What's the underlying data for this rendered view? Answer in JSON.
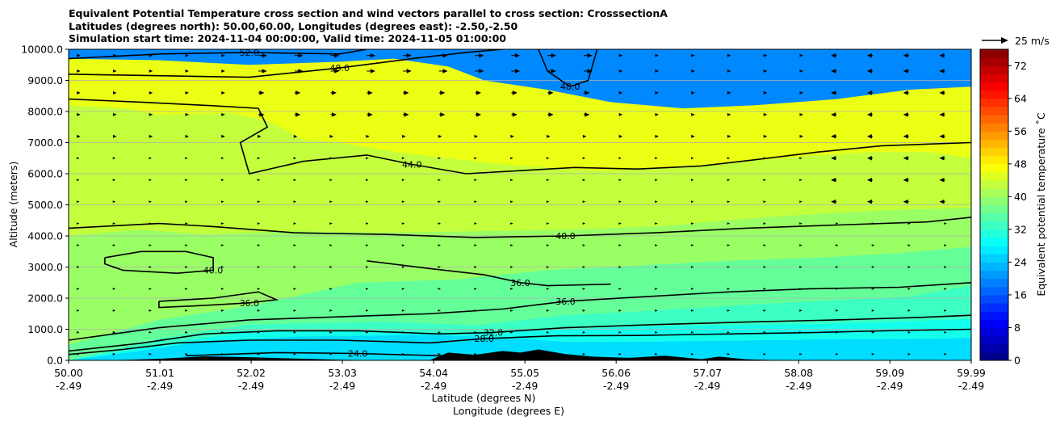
{
  "chart_data": {
    "type": "contourf",
    "title_lines": [
      "Equivalent Potential Temperature cross section and wind vectors parallel to cross section: CrosssectionA",
      "Latitudes (degrees north): 50.00,60.00, Longitudes (degrees east): -2.50,-2.50",
      "Simulation start time: 2024-11-04 00:00:00, Valid time: 2024-11-05 01:00:00"
    ],
    "ylabel": "Altitude (meters)",
    "xlabel_lat": "Latitude (degrees N)",
    "xlabel_lon": "Longitude (degrees E)",
    "ylim": [
      0,
      10000
    ],
    "xlim": [
      50.0,
      59.99
    ],
    "y_ticks": [
      {
        "value": 0,
        "label": "0.0"
      },
      {
        "value": 1000,
        "label": "1000.0"
      },
      {
        "value": 2000,
        "label": "2000.0"
      },
      {
        "value": 3000,
        "label": "3000.0"
      },
      {
        "value": 4000,
        "label": "4000.0"
      },
      {
        "value": 5000,
        "label": "5000.0"
      },
      {
        "value": 6000,
        "label": "6000.0"
      },
      {
        "value": 7000,
        "label": "7000.0"
      },
      {
        "value": 8000,
        "label": "8000.0"
      },
      {
        "value": 9000,
        "label": "9000.0"
      },
      {
        "value": 10000,
        "label": "10000.0"
      }
    ],
    "x_ticks": [
      {
        "lat": "50.00",
        "lon": "-2.49",
        "value": 50.0
      },
      {
        "lat": "51.01",
        "lon": "-2.49",
        "value": 51.01
      },
      {
        "lat": "52.02",
        "lon": "-2.49",
        "value": 52.02
      },
      {
        "lat": "53.03",
        "lon": "-2.49",
        "value": 53.03
      },
      {
        "lat": "54.04",
        "lon": "-2.49",
        "value": 54.04
      },
      {
        "lat": "55.05",
        "lon": "-2.49",
        "value": 55.05
      },
      {
        "lat": "56.06",
        "lon": "-2.49",
        "value": 56.06
      },
      {
        "lat": "57.07",
        "lon": "-2.49",
        "value": 57.07
      },
      {
        "lat": "58.08",
        "lon": "-2.49",
        "value": 58.08
      },
      {
        "lat": "59.09",
        "lon": "-2.49",
        "value": 59.09
      },
      {
        "lat": "59.99",
        "lon": "-2.49",
        "value": 59.99
      }
    ],
    "colorbar": {
      "label": "Equivalent potential temperature ˚C",
      "range": [
        0,
        76
      ],
      "tick_values": [
        0,
        8,
        16,
        24,
        32,
        40,
        48,
        56,
        64,
        72
      ],
      "tick_labels": [
        "0",
        "8",
        "16",
        "24",
        "32",
        "40",
        "48",
        "56",
        "64",
        "72"
      ]
    },
    "quiver_key": {
      "label": "25 m/s",
      "speed": 25
    },
    "fill_layers": [
      {
        "value": 26,
        "points": [
          [
            50.0,
            0
          ],
          [
            50.8,
            300
          ],
          [
            51.5,
            620
          ],
          [
            52.5,
            760
          ],
          [
            54,
            820
          ],
          [
            55,
            700
          ],
          [
            55.5,
            590
          ],
          [
            56.5,
            600
          ],
          [
            57.5,
            640
          ],
          [
            58.5,
            680
          ],
          [
            59.5,
            690
          ],
          [
            59.99,
            720
          ],
          [
            59.99,
            0
          ]
        ]
      },
      {
        "value": 30,
        "points": [
          [
            50.0,
            0
          ],
          [
            50.9,
            450
          ],
          [
            52,
            930
          ],
          [
            53.3,
            960
          ],
          [
            54.2,
            880
          ],
          [
            55.2,
            950
          ],
          [
            56.3,
            1080
          ],
          [
            57.3,
            1130
          ],
          [
            58.4,
            1180
          ],
          [
            59.3,
            1260
          ],
          [
            59.99,
            1330
          ],
          [
            59.99,
            0
          ]
        ]
      },
      {
        "value": 33,
        "points": [
          [
            50.0,
            0
          ],
          [
            51,
            700
          ],
          [
            52,
            1150
          ],
          [
            53.5,
            1250
          ],
          [
            54.5,
            1130
          ],
          [
            55.5,
            1450
          ],
          [
            56.6,
            1620
          ],
          [
            57.6,
            1800
          ],
          [
            58.5,
            1930
          ],
          [
            59.3,
            2050
          ],
          [
            59.99,
            2400
          ],
          [
            59.99,
            0
          ]
        ]
      },
      {
        "value": 36,
        "points": [
          [
            50.0,
            500
          ],
          [
            51,
            1300
          ],
          [
            52,
            1750
          ],
          [
            53.2,
            2500
          ],
          [
            54.3,
            2600
          ],
          [
            55.3,
            2900
          ],
          [
            56.3,
            3050
          ],
          [
            57.3,
            3200
          ],
          [
            58.3,
            3300
          ],
          [
            59.2,
            3450
          ],
          [
            59.99,
            3650
          ],
          [
            59.99,
            0
          ],
          [
            50.0,
            0
          ]
        ]
      },
      {
        "value": 40,
        "points": [
          [
            50.0,
            4000
          ],
          [
            50.8,
            4200
          ],
          [
            51.5,
            4050
          ],
          [
            52.5,
            4150
          ],
          [
            53.5,
            4100
          ],
          [
            54.5,
            4150
          ],
          [
            55.5,
            4200
          ],
          [
            56.5,
            4300
          ],
          [
            57.5,
            4550
          ],
          [
            58.5,
            4750
          ],
          [
            59.3,
            4850
          ],
          [
            59.99,
            4900
          ],
          [
            59.99,
            0
          ],
          [
            50.0,
            0
          ]
        ]
      },
      {
        "value": 43,
        "points": [
          [
            50.0,
            8200
          ],
          [
            50.6,
            8100
          ],
          [
            51,
            7900
          ],
          [
            51.8,
            7950
          ],
          [
            52.2,
            7700
          ],
          [
            52.6,
            7100
          ],
          [
            53,
            7000
          ],
          [
            53.6,
            6700
          ],
          [
            54.2,
            6500
          ],
          [
            54.8,
            6300
          ],
          [
            55.3,
            6200
          ],
          [
            55.9,
            6100
          ],
          [
            56.5,
            6150
          ],
          [
            57.1,
            6300
          ],
          [
            57.7,
            6450
          ],
          [
            58.3,
            6600
          ],
          [
            58.9,
            6700
          ],
          [
            59.5,
            6700
          ],
          [
            59.99,
            6500
          ],
          [
            59.99,
            0
          ],
          [
            50.0,
            0
          ]
        ]
      },
      {
        "value": 46,
        "points": [
          [
            50.0,
            9700
          ],
          [
            51,
            9650
          ],
          [
            52,
            9500
          ],
          [
            53,
            9600
          ],
          [
            53.6,
            9700
          ],
          [
            54.2,
            9450
          ],
          [
            54.6,
            9000
          ],
          [
            55.3,
            8700
          ],
          [
            56,
            8300
          ],
          [
            56.8,
            8100
          ],
          [
            57.6,
            8200
          ],
          [
            58.5,
            8400
          ],
          [
            59.3,
            8700
          ],
          [
            59.99,
            8800
          ],
          [
            59.99,
            0
          ],
          [
            50.0,
            0
          ]
        ]
      }
    ],
    "contours": [
      {
        "label": "24.0",
        "points": [
          [
            51.3,
            150
          ],
          [
            52.3,
            250
          ],
          [
            53.2,
            220
          ],
          [
            54.1,
            150
          ],
          [
            55.0,
            140
          ]
        ]
      },
      {
        "label": "28.0",
        "points": [
          [
            50.0,
            190
          ],
          [
            50.6,
            350
          ],
          [
            51.2,
            560
          ],
          [
            52.0,
            650
          ],
          [
            53.0,
            650
          ],
          [
            54.0,
            560
          ],
          [
            54.6,
            700
          ],
          [
            55.4,
            790
          ],
          [
            56.3,
            800
          ],
          [
            57.3,
            850
          ],
          [
            58.3,
            900
          ],
          [
            59.2,
            960
          ],
          [
            59.99,
            1000
          ]
        ]
      },
      {
        "label": "32.0",
        "points": [
          [
            50.0,
            300
          ],
          [
            50.8,
            550
          ],
          [
            51.5,
            850
          ],
          [
            52.3,
            950
          ],
          [
            53.2,
            950
          ],
          [
            54.1,
            850
          ],
          [
            54.7,
            900
          ],
          [
            55.5,
            1050
          ],
          [
            56.5,
            1150
          ],
          [
            57.5,
            1230
          ],
          [
            58.5,
            1300
          ],
          [
            59.4,
            1380
          ],
          [
            59.99,
            1450
          ]
        ]
      },
      {
        "label": "36.0",
        "points": [
          [
            50.0,
            650
          ],
          [
            51.0,
            1050
          ],
          [
            52.0,
            1300
          ],
          [
            53.0,
            1400
          ],
          [
            54.0,
            1500
          ],
          [
            54.8,
            1650
          ],
          [
            55.5,
            1900
          ],
          [
            56.4,
            2050
          ],
          [
            57.3,
            2200
          ],
          [
            58.2,
            2300
          ],
          [
            59.2,
            2350
          ],
          [
            59.99,
            2500
          ]
        ]
      },
      {
        "label": "36.0",
        "points": [
          [
            51.0,
            1900
          ],
          [
            51.6,
            2000
          ],
          [
            52.1,
            2200
          ],
          [
            52.3,
            1950
          ],
          [
            52.0,
            1850
          ],
          [
            51.4,
            1750
          ],
          [
            51.0,
            1700
          ],
          [
            51.0,
            1900
          ]
        ]
      },
      {
        "label": "36.0",
        "points": [
          [
            53.3,
            3200
          ],
          [
            54.0,
            2950
          ],
          [
            54.6,
            2750
          ],
          [
            55.0,
            2500
          ],
          [
            55.3,
            2400
          ],
          [
            56.0,
            2450
          ]
        ]
      },
      {
        "label": "40.0",
        "points": [
          [
            50.4,
            3300
          ],
          [
            50.8,
            3500
          ],
          [
            51.3,
            3500
          ],
          [
            51.6,
            3300
          ],
          [
            51.6,
            2900
          ],
          [
            51.2,
            2800
          ],
          [
            50.6,
            2900
          ],
          [
            50.4,
            3100
          ],
          [
            50.4,
            3300
          ]
        ]
      },
      {
        "label": "40.0",
        "points": [
          [
            50.0,
            4250
          ],
          [
            51.0,
            4400
          ],
          [
            51.6,
            4300
          ],
          [
            52.5,
            4100
          ],
          [
            53.5,
            4050
          ],
          [
            54.5,
            3950
          ],
          [
            55.5,
            4000
          ],
          [
            56.5,
            4100
          ],
          [
            57.5,
            4250
          ],
          [
            58.5,
            4350
          ],
          [
            59.5,
            4450
          ],
          [
            59.99,
            4600
          ]
        ]
      },
      {
        "label": "44.0",
        "points": [
          [
            50.0,
            8400
          ],
          [
            50.8,
            8300
          ],
          [
            51.5,
            8200
          ],
          [
            52.1,
            8100
          ],
          [
            52.2,
            7500
          ],
          [
            51.9,
            7000
          ],
          [
            52.0,
            6000
          ],
          [
            52.6,
            6400
          ],
          [
            53.3,
            6600
          ],
          [
            53.8,
            6300
          ],
          [
            54.4,
            6000
          ],
          [
            55.0,
            6100
          ],
          [
            55.6,
            6200
          ],
          [
            56.3,
            6150
          ],
          [
            57.0,
            6250
          ],
          [
            57.6,
            6450
          ],
          [
            58.3,
            6700
          ],
          [
            59.0,
            6900
          ],
          [
            59.99,
            7000
          ]
        ]
      },
      {
        "label": "48.0",
        "points": [
          [
            55.2,
            10000
          ],
          [
            55.3,
            9300
          ],
          [
            55.55,
            8800
          ],
          [
            55.75,
            9000
          ],
          [
            55.85,
            10000
          ]
        ]
      },
      {
        "label": "48.0",
        "points": [
          [
            50.0,
            9200
          ],
          [
            51.0,
            9150
          ],
          [
            52.0,
            9100
          ],
          [
            53.0,
            9400
          ],
          [
            53.8,
            9700
          ],
          [
            54.4,
            9900
          ],
          [
            54.8,
            10000
          ]
        ]
      },
      {
        "label": "52.0",
        "points": [
          [
            50.0,
            9700
          ],
          [
            51.0,
            9850
          ],
          [
            52.0,
            9900
          ],
          [
            53.0,
            9850
          ],
          [
            53.3,
            10000
          ]
        ]
      }
    ],
    "terrain": [
      [
        50.0,
        0
      ],
      [
        50.5,
        5
      ],
      [
        51.0,
        50
      ],
      [
        51.5,
        130
      ],
      [
        52.0,
        100
      ],
      [
        52.5,
        60
      ],
      [
        53.0,
        20
      ],
      [
        53.5,
        0
      ],
      [
        54.0,
        10
      ],
      [
        54.2,
        250
      ],
      [
        54.5,
        180
      ],
      [
        54.8,
        300
      ],
      [
        55.0,
        250
      ],
      [
        55.2,
        350
      ],
      [
        55.5,
        200
      ],
      [
        55.8,
        120
      ],
      [
        56.2,
        80
      ],
      [
        56.6,
        150
      ],
      [
        57.0,
        40
      ],
      [
        57.2,
        120
      ],
      [
        57.5,
        30
      ],
      [
        58.0,
        0
      ],
      [
        59.99,
        0
      ]
    ],
    "wind_vectors": {
      "columns": [
        50.1,
        50.5,
        50.9,
        51.3,
        51.7,
        52.1,
        52.5,
        52.9,
        53.3,
        53.7,
        54.1,
        54.5,
        54.9,
        55.3,
        55.7,
        56.1,
        56.5,
        56.9,
        57.3,
        57.7,
        58.1,
        58.5,
        58.9,
        59.3,
        59.7
      ],
      "rows": [
        200,
        900,
        1600,
        2300,
        3000,
        3700,
        4400,
        5100,
        5800,
        6500,
        7200,
        7900,
        8600,
        9300,
        9800
      ],
      "high_speed_zone": {
        "x_range": [
          52.0,
          56.0
        ],
        "y_range": [
          7500,
          10000
        ],
        "speed": 8
      },
      "east_reverse_zone": {
        "x_range": [
          58.5,
          59.99
        ],
        "y_range": [
          4800,
          10000
        ],
        "speed": -6
      }
    }
  }
}
